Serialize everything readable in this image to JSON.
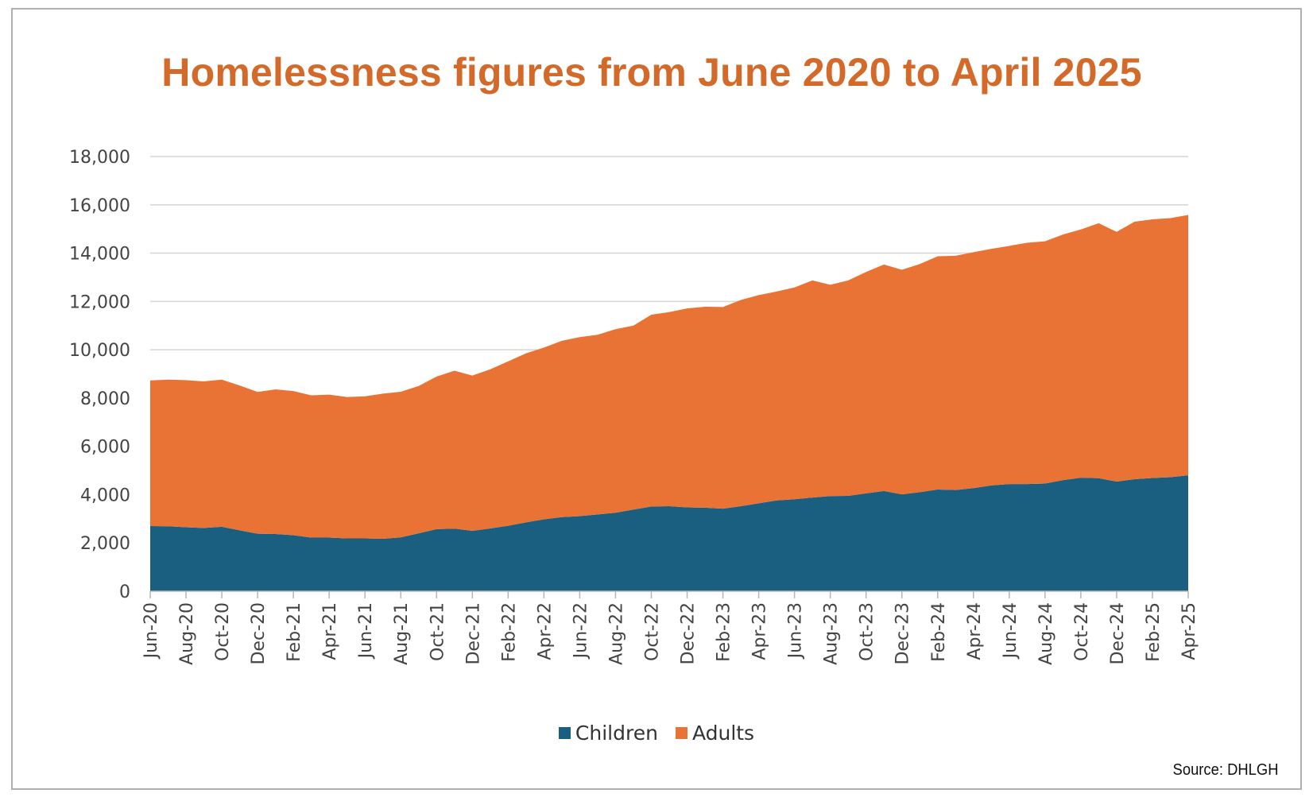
{
  "chart_data": {
    "type": "area",
    "stacked": true,
    "title": "Homelessness figures from June 2020 to April 2025",
    "source": "Source: DHLGH",
    "ylim": [
      0,
      18000
    ],
    "yticks": [
      "0",
      "2,000",
      "4,000",
      "6,000",
      "8,000",
      "10,000",
      "12,000",
      "14,000",
      "16,000",
      "18,000"
    ],
    "ytick_values": [
      0,
      2000,
      4000,
      6000,
      8000,
      10000,
      12000,
      14000,
      16000,
      18000
    ],
    "grid": true,
    "legend_position": "bottom",
    "x": [
      "Jun-20",
      "Jul-20",
      "Aug-20",
      "Sep-20",
      "Oct-20",
      "Nov-20",
      "Dec-20",
      "Jan-21",
      "Feb-21",
      "Mar-21",
      "Apr-21",
      "May-21",
      "Jun-21",
      "Jul-21",
      "Aug-21",
      "Sep-21",
      "Oct-21",
      "Nov-21",
      "Dec-21",
      "Jan-22",
      "Feb-22",
      "Mar-22",
      "Apr-22",
      "May-22",
      "Jun-22",
      "Jul-22",
      "Aug-22",
      "Sep-22",
      "Oct-22",
      "Nov-22",
      "Dec-22",
      "Jan-23",
      "Feb-23",
      "Mar-23",
      "Apr-23",
      "May-23",
      "Jun-23",
      "Jul-23",
      "Aug-23",
      "Sep-23",
      "Oct-23",
      "Nov-23",
      "Dec-23",
      "Jan-24",
      "Feb-24",
      "Mar-24",
      "Apr-24",
      "May-24",
      "Jun-24",
      "Jul-24",
      "Aug-24",
      "Sep-24",
      "Oct-24",
      "Nov-24",
      "Dec-24",
      "Jan-25",
      "Feb-25",
      "Mar-25",
      "Apr-25"
    ],
    "xtick_labels": [
      "Jun-20",
      "Aug-20",
      "Oct-20",
      "Dec-20",
      "Feb-21",
      "Apr-21",
      "Jun-21",
      "Aug-21",
      "Oct-21",
      "Dec-21",
      "Feb-22",
      "Apr-22",
      "Jun-22",
      "Aug-22",
      "Oct-22",
      "Dec-22",
      "Feb-23",
      "Apr-23",
      "Jun-23",
      "Aug-23",
      "Oct-23",
      "Dec-23",
      "Feb-24",
      "Apr-24",
      "Jun-24",
      "Aug-24",
      "Oct-24",
      "Dec-24",
      "Feb-25",
      "Apr-25"
    ],
    "series": [
      {
        "name": "Children",
        "color": "#1A5E80",
        "values": [
          2700,
          2690,
          2650,
          2620,
          2670,
          2520,
          2380,
          2370,
          2320,
          2220,
          2220,
          2190,
          2190,
          2170,
          2230,
          2400,
          2570,
          2590,
          2500,
          2600,
          2710,
          2850,
          2980,
          3070,
          3110,
          3180,
          3250,
          3380,
          3510,
          3520,
          3470,
          3460,
          3420,
          3520,
          3640,
          3760,
          3810,
          3880,
          3940,
          3950,
          4050,
          4150,
          4010,
          4100,
          4210,
          4190,
          4270,
          4380,
          4440,
          4440,
          4460,
          4600,
          4700,
          4680,
          4540,
          4640,
          4690,
          4720,
          4800
        ]
      },
      {
        "name": "Adults",
        "color": "#E97335",
        "values": [
          6030,
          6070,
          6090,
          6070,
          6090,
          6000,
          5870,
          5990,
          5970,
          5890,
          5920,
          5850,
          5880,
          6010,
          6030,
          6100,
          6320,
          6540,
          6430,
          6590,
          6810,
          7000,
          7110,
          7300,
          7410,
          7440,
          7600,
          7620,
          7940,
          8040,
          8240,
          8320,
          8350,
          8540,
          8620,
          8650,
          8770,
          8990,
          8750,
          8920,
          9170,
          9380,
          9300,
          9450,
          9660,
          9700,
          9770,
          9800,
          9860,
          9990,
          10030,
          10170,
          10280,
          10560,
          10340,
          10660,
          10710,
          10730,
          10780
        ]
      }
    ]
  }
}
